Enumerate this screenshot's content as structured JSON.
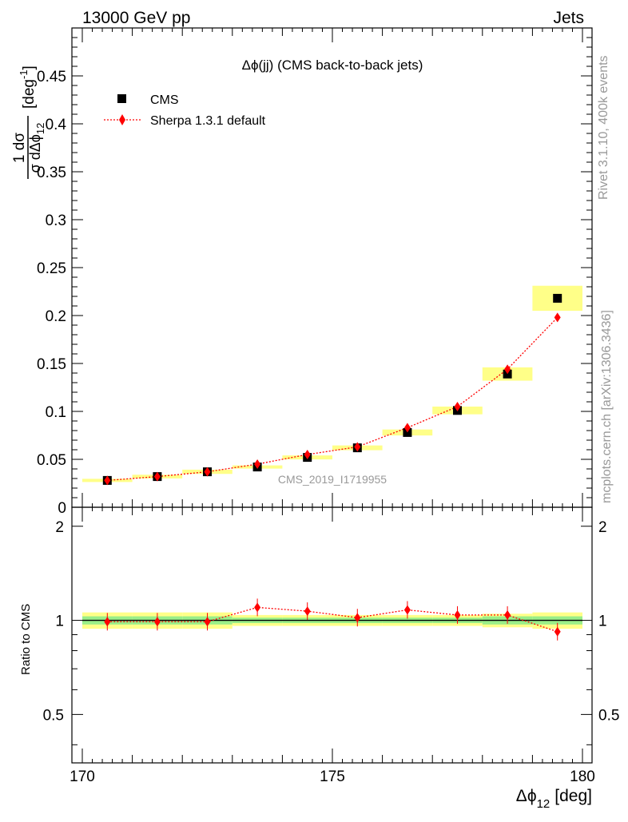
{
  "header": {
    "left": "13000 GeV pp",
    "right": "Jets"
  },
  "side": {
    "rivet": "Rivet 3.1.10,  400k events",
    "mcplots": "mcplots.cern.ch [arXiv:1306.3436]"
  },
  "chart_data": {
    "type": "scatter",
    "title": "Δϕ(jj) (CMS back-to-back jets)",
    "watermark": "CMS_2019_I1719955",
    "xlabel": "Δϕ",
    "xlabel_sub": "12",
    "xlabel_unit": "[deg]",
    "xlim": [
      170,
      180
    ],
    "x_ticks": [
      170,
      175,
      180
    ],
    "ylabel_main": {
      "numerator": "1 dσ",
      "denominator": "σ dΔϕ",
      "denominator_sub": "12",
      "unit": "[deg",
      "unit_sup": "-1",
      "unit_close": "]"
    },
    "ylim": [
      0,
      0.5
    ],
    "y_ticks": [
      0,
      0.05,
      0.1,
      0.15,
      0.2,
      0.25,
      0.3,
      0.35,
      0.4,
      0.45
    ],
    "ratio": {
      "ylabel": "Ratio to CMS",
      "ylim": [
        0.35,
        2.3
      ],
      "log": true,
      "y_ticks": [
        0.5,
        1,
        2
      ]
    },
    "legend_position": "top-left",
    "series": [
      {
        "name": "CMS",
        "marker": "square",
        "color": "#000000",
        "x": [
          170.5,
          171.5,
          172.5,
          173.5,
          174.5,
          175.5,
          176.5,
          177.5,
          178.5,
          179.5
        ],
        "y": [
          0.028,
          0.032,
          0.037,
          0.042,
          0.052,
          0.062,
          0.078,
          0.101,
          0.139,
          0.218
        ],
        "band_green": [
          0.03,
          0.03,
          0.03,
          0.02,
          0.02,
          0.02,
          0.02,
          0.02,
          0.03,
          0.03
        ],
        "band_yellow": [
          0.06,
          0.06,
          0.06,
          0.04,
          0.04,
          0.04,
          0.04,
          0.04,
          0.05,
          0.06
        ]
      },
      {
        "name": "Sherpa 1.3.1 default",
        "marker": "diamond",
        "color": "#ff0000",
        "x": [
          170.5,
          171.5,
          172.5,
          173.5,
          174.5,
          175.5,
          176.5,
          177.5,
          178.5,
          179.5
        ],
        "y": [
          0.028,
          0.032,
          0.037,
          0.045,
          0.055,
          0.063,
          0.083,
          0.105,
          0.144,
          0.198
        ],
        "ratio": [
          0.99,
          0.99,
          0.99,
          1.1,
          1.07,
          1.02,
          1.08,
          1.04,
          1.04,
          0.92
        ]
      }
    ]
  }
}
